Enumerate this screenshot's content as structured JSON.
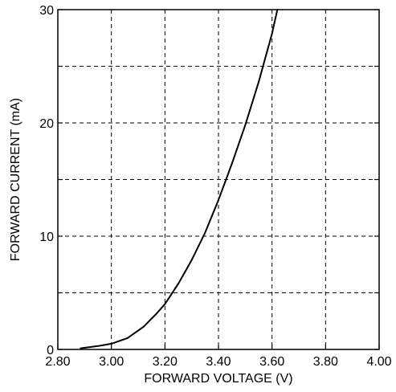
{
  "chart_data": {
    "type": "line",
    "title": "",
    "xlabel": "FORWARD VOLTAGE (V)",
    "ylabel": "FORWARD CURRENT (mA)",
    "xlim": [
      2.8,
      4.0
    ],
    "ylim": [
      0,
      30
    ],
    "x_ticks": [
      2.8,
      3.0,
      3.2,
      3.4,
      3.6,
      3.8,
      4.0
    ],
    "y_ticks": [
      0,
      5,
      10,
      15,
      20,
      25,
      30
    ],
    "x_tick_labels": [
      "2.80",
      "3.00",
      "3.20",
      "3.40",
      "3.60",
      "3.80",
      "4.00"
    ],
    "y_tick_labels": [
      "0",
      "",
      "10",
      "",
      "20",
      "",
      "30"
    ],
    "grid": true,
    "grid_style": "dashed",
    "series": [
      {
        "x": [
          2.885,
          2.95,
          3.0,
          3.06,
          3.12,
          3.17,
          3.2,
          3.25,
          3.3,
          3.35,
          3.4,
          3.45,
          3.5,
          3.55,
          3.6,
          3.62
        ],
        "y": [
          0.1,
          0.3,
          0.5,
          1.0,
          2.0,
          3.2,
          4.0,
          5.8,
          7.9,
          10.3,
          13.2,
          16.4,
          19.8,
          23.6,
          27.9,
          30.0
        ]
      }
    ]
  }
}
